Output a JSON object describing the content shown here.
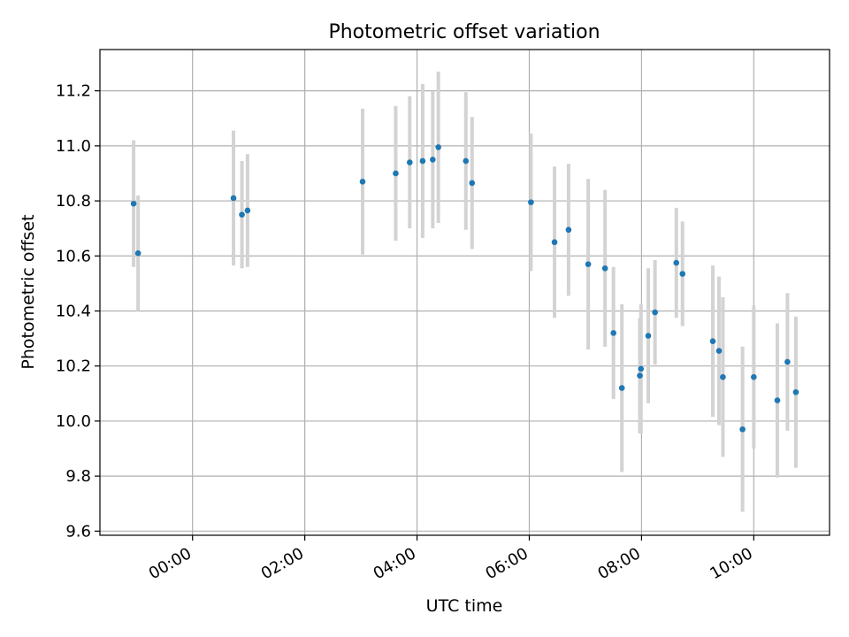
{
  "chart_data": {
    "type": "scatter",
    "title": "Photometric offset variation",
    "xlabel": "UTC time",
    "ylabel": "Photometric offset",
    "x_tick_labels": [
      "00:00",
      "02:00",
      "04:00",
      "06:00",
      "08:00",
      "10:00"
    ],
    "x_tick_hours": [
      0,
      2,
      4,
      6,
      8,
      10
    ],
    "y_tick_labels": [
      "9.6",
      "9.8",
      "10.0",
      "10.2",
      "10.4",
      "10.6",
      "10.8",
      "11.0",
      "11.2"
    ],
    "y_ticks": [
      9.6,
      9.8,
      10.0,
      10.2,
      10.4,
      10.6,
      10.8,
      11.0,
      11.2
    ],
    "xlim_hours": [
      -1.65,
      11.35
    ],
    "ylim": [
      9.585,
      11.35
    ],
    "grid": true,
    "marker_color": "#1f77b4",
    "errorbar_color": "#d3d3d3",
    "points": [
      {
        "t_hours": -1.05,
        "y": 10.79,
        "err": 0.23
      },
      {
        "t_hours": -0.97,
        "y": 10.61,
        "err": 0.21
      },
      {
        "t_hours": 0.73,
        "y": 10.81,
        "err": 0.245
      },
      {
        "t_hours": 0.88,
        "y": 10.75,
        "err": 0.195
      },
      {
        "t_hours": 0.98,
        "y": 10.765,
        "err": 0.205
      },
      {
        "t_hours": 3.03,
        "y": 10.87,
        "err": 0.265
      },
      {
        "t_hours": 3.62,
        "y": 10.9,
        "err": 0.245
      },
      {
        "t_hours": 3.87,
        "y": 10.94,
        "err": 0.24
      },
      {
        "t_hours": 4.1,
        "y": 10.945,
        "err": 0.28
      },
      {
        "t_hours": 4.28,
        "y": 10.95,
        "err": 0.25
      },
      {
        "t_hours": 4.38,
        "y": 10.995,
        "err": 0.275
      },
      {
        "t_hours": 4.87,
        "y": 10.945,
        "err": 0.25
      },
      {
        "t_hours": 4.98,
        "y": 10.865,
        "err": 0.24
      },
      {
        "t_hours": 6.03,
        "y": 10.795,
        "err": 0.25
      },
      {
        "t_hours": 6.45,
        "y": 10.65,
        "err": 0.275
      },
      {
        "t_hours": 6.7,
        "y": 10.695,
        "err": 0.24
      },
      {
        "t_hours": 7.05,
        "y": 10.57,
        "err": 0.31
      },
      {
        "t_hours": 7.35,
        "y": 10.555,
        "err": 0.285
      },
      {
        "t_hours": 7.5,
        "y": 10.32,
        "err": 0.24
      },
      {
        "t_hours": 7.65,
        "y": 10.12,
        "err": 0.305
      },
      {
        "t_hours": 7.97,
        "y": 10.165,
        "err": 0.21
      },
      {
        "t_hours": 7.99,
        "y": 10.19,
        "err": 0.235
      },
      {
        "t_hours": 8.12,
        "y": 10.31,
        "err": 0.245
      },
      {
        "t_hours": 8.24,
        "y": 10.395,
        "err": 0.19
      },
      {
        "t_hours": 8.62,
        "y": 10.575,
        "err": 0.2
      },
      {
        "t_hours": 8.73,
        "y": 10.535,
        "err": 0.19
      },
      {
        "t_hours": 9.27,
        "y": 10.29,
        "err": 0.275
      },
      {
        "t_hours": 9.38,
        "y": 10.255,
        "err": 0.27
      },
      {
        "t_hours": 9.45,
        "y": 10.16,
        "err": 0.29
      },
      {
        "t_hours": 9.8,
        "y": 9.97,
        "err": 0.3
      },
      {
        "t_hours": 10.0,
        "y": 10.16,
        "err": 0.26
      },
      {
        "t_hours": 10.42,
        "y": 10.075,
        "err": 0.28
      },
      {
        "t_hours": 10.6,
        "y": 10.215,
        "err": 0.25
      },
      {
        "t_hours": 10.75,
        "y": 10.105,
        "err": 0.275
      }
    ]
  }
}
